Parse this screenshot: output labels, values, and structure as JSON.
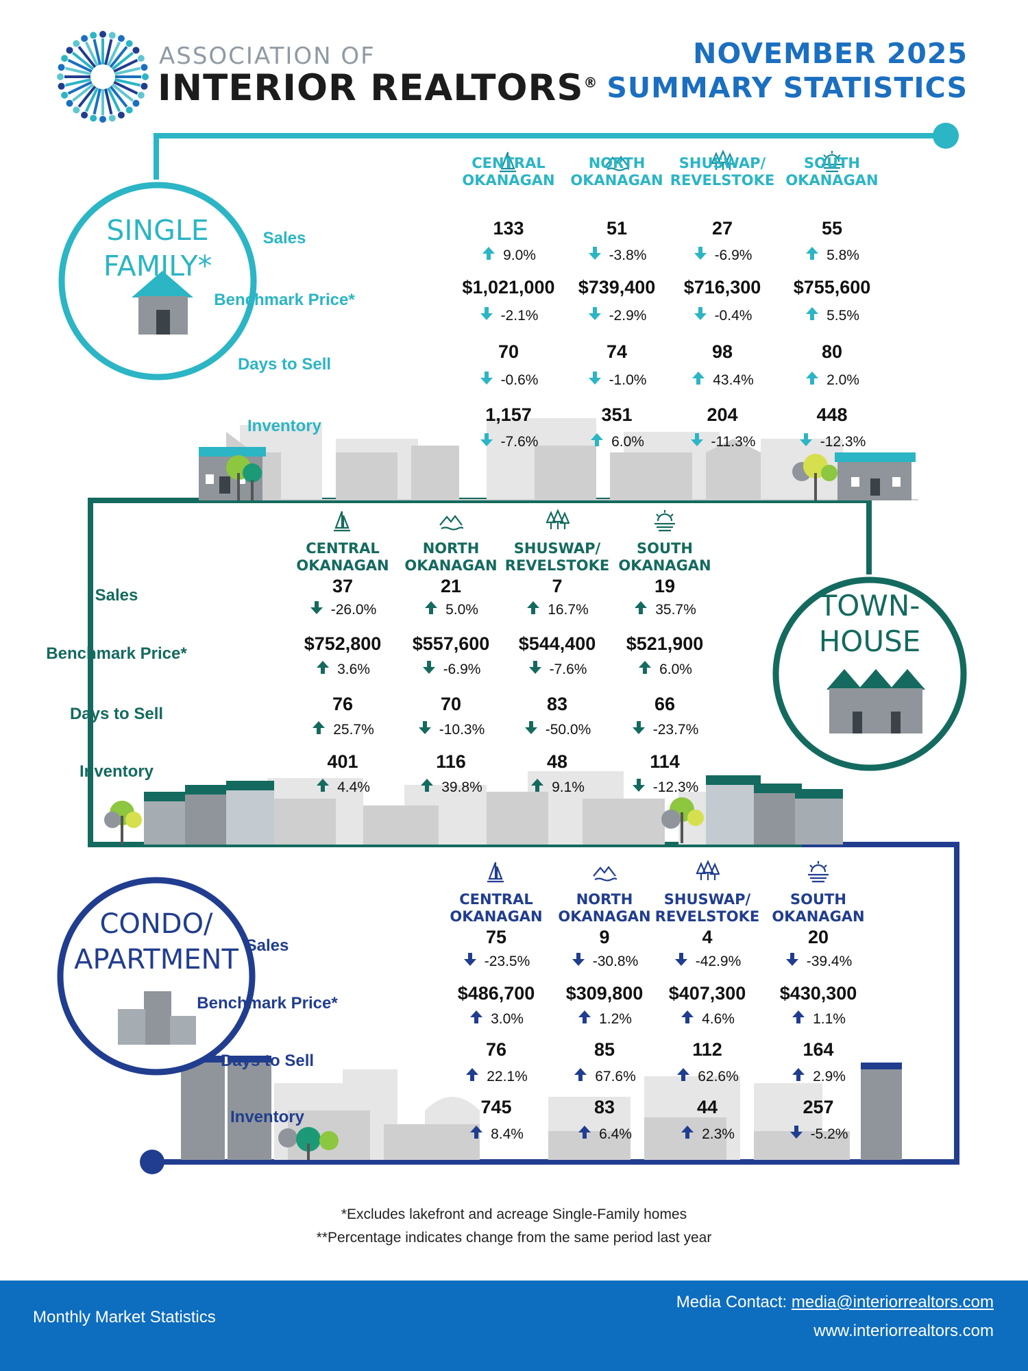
{
  "header": {
    "logo_line1": "ASSOCIATION OF",
    "logo_line2": "INTERIOR REALTORS",
    "registered": "®",
    "title_line1": "NOVEMBER 2025",
    "title_line2": "SUMMARY STATISTICS"
  },
  "colors": {
    "teal": "#2bb5c5",
    "green": "#146a5e",
    "navy": "#213d8f",
    "blue": "#0d6dbf",
    "skyline": "#d6d6d6"
  },
  "regions": [
    {
      "line1": "CENTRAL",
      "line2": "OKANAGAN",
      "icon": "sailboat-icon"
    },
    {
      "line1": "NORTH",
      "line2": "OKANAGAN",
      "icon": "mountains-icon"
    },
    {
      "line1": "SHUSWAP/",
      "line2": "REVELSTOKE",
      "icon": "trees-icon"
    },
    {
      "line1": "SOUTH",
      "line2": "OKANAGAN",
      "icon": "sunset-icon"
    }
  ],
  "row_labels": [
    "Sales",
    "Benchmark Price*",
    "Days to Sell",
    "Inventory"
  ],
  "single_family": {
    "title_line1": "SINGLE",
    "title_line2": "FAMILY*",
    "rows": [
      [
        {
          "v": "133",
          "d": "up",
          "p": "9.0%"
        },
        {
          "v": "51",
          "d": "down",
          "p": "-3.8%"
        },
        {
          "v": "27",
          "d": "down",
          "p": "-6.9%"
        },
        {
          "v": "55",
          "d": "up",
          "p": "5.8%"
        }
      ],
      [
        {
          "v": "$1,021,000",
          "d": "down",
          "p": "-2.1%"
        },
        {
          "v": "$739,400",
          "d": "down",
          "p": "-2.9%"
        },
        {
          "v": "$716,300",
          "d": "down",
          "p": "-0.4%"
        },
        {
          "v": "$755,600",
          "d": "up",
          "p": "5.5%"
        }
      ],
      [
        {
          "v": "70",
          "d": "down",
          "p": "-0.6%"
        },
        {
          "v": "74",
          "d": "down",
          "p": "-1.0%"
        },
        {
          "v": "98",
          "d": "up",
          "p": "43.4%"
        },
        {
          "v": "80",
          "d": "up",
          "p": "2.0%"
        }
      ],
      [
        {
          "v": "1,157",
          "d": "down",
          "p": "-7.6%"
        },
        {
          "v": "351",
          "d": "up",
          "p": "6.0%"
        },
        {
          "v": "204",
          "d": "down",
          "p": "-11.3%"
        },
        {
          "v": "448",
          "d": "down",
          "p": "-12.3%"
        }
      ]
    ]
  },
  "townhouse": {
    "title_line1": "TOWN-",
    "title_line2": "HOUSE",
    "rows": [
      [
        {
          "v": "37",
          "d": "down",
          "p": "-26.0%"
        },
        {
          "v": "21",
          "d": "up",
          "p": "5.0%"
        },
        {
          "v": "7",
          "d": "up",
          "p": "16.7%"
        },
        {
          "v": "19",
          "d": "up",
          "p": "35.7%"
        }
      ],
      [
        {
          "v": "$752,800",
          "d": "up",
          "p": "3.6%"
        },
        {
          "v": "$557,600",
          "d": "down",
          "p": "-6.9%"
        },
        {
          "v": "$544,400",
          "d": "down",
          "p": "-7.6%"
        },
        {
          "v": "$521,900",
          "d": "up",
          "p": "6.0%"
        }
      ],
      [
        {
          "v": "76",
          "d": "up",
          "p": "25.7%"
        },
        {
          "v": "70",
          "d": "down",
          "p": "-10.3%"
        },
        {
          "v": "83",
          "d": "down",
          "p": "-50.0%"
        },
        {
          "v": "66",
          "d": "down",
          "p": "-23.7%"
        }
      ],
      [
        {
          "v": "401",
          "d": "up",
          "p": "4.4%"
        },
        {
          "v": "116",
          "d": "up",
          "p": "39.8%"
        },
        {
          "v": "48",
          "d": "up",
          "p": "9.1%"
        },
        {
          "v": "114",
          "d": "down",
          "p": "-12.3%"
        }
      ]
    ]
  },
  "condo": {
    "title_line1": "CONDO/",
    "title_line2": "APARTMENT",
    "rows": [
      [
        {
          "v": "75",
          "d": "down",
          "p": "-23.5%"
        },
        {
          "v": "9",
          "d": "down",
          "p": "-30.8%"
        },
        {
          "v": "4",
          "d": "down",
          "p": "-42.9%"
        },
        {
          "v": "20",
          "d": "down",
          "p": "-39.4%"
        }
      ],
      [
        {
          "v": "$486,700",
          "d": "up",
          "p": "3.0%"
        },
        {
          "v": "$309,800",
          "d": "up",
          "p": "1.2%"
        },
        {
          "v": "$407,300",
          "d": "up",
          "p": "4.6%"
        },
        {
          "v": "$430,300",
          "d": "up",
          "p": "1.1%"
        }
      ],
      [
        {
          "v": "76",
          "d": "up",
          "p": "22.1%"
        },
        {
          "v": "85",
          "d": "up",
          "p": "67.6%"
        },
        {
          "v": "112",
          "d": "up",
          "p": "62.6%"
        },
        {
          "v": "164",
          "d": "up",
          "p": "2.9%"
        }
      ],
      [
        {
          "v": "745",
          "d": "up",
          "p": "8.4%"
        },
        {
          "v": "83",
          "d": "up",
          "p": "6.4%"
        },
        {
          "v": "44",
          "d": "up",
          "p": "2.3%"
        },
        {
          "v": "257",
          "d": "down",
          "p": "-5.2%"
        }
      ]
    ]
  },
  "notes": {
    "line1": "*Excludes lakefront and acreage Single-Family homes",
    "line2": "**Percentage indicates change from the same period last year"
  },
  "footer": {
    "left": "Monthly Market Statistics",
    "contact_label": "Media Contact: ",
    "contact_email": "media@interiorrealtors.com",
    "website": "www.interiorrealtors.com"
  }
}
